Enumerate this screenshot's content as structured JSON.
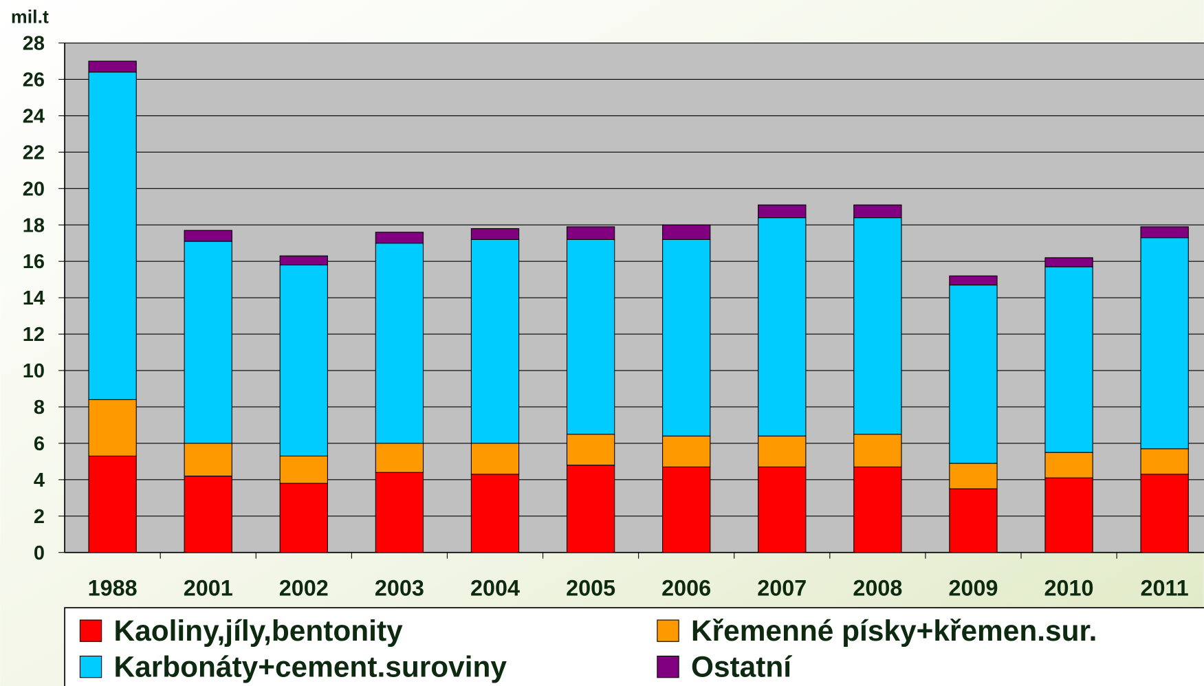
{
  "chart_data": {
    "type": "stacked_bar",
    "y_axis_label": "mil.t",
    "categories": [
      "1988",
      "2001",
      "2002",
      "2003",
      "2004",
      "2005",
      "2006",
      "2007",
      "2008",
      "2009",
      "2010",
      "2011"
    ],
    "series": [
      {
        "name": "Kaoliny,jíly,bentonity",
        "color": "#ff0000",
        "values": [
          5.3,
          4.2,
          3.8,
          4.4,
          4.3,
          4.8,
          4.7,
          4.7,
          4.7,
          3.5,
          4.1,
          4.3
        ]
      },
      {
        "name": "Křemenné písky+křemen.sur.",
        "color": "#ff9900",
        "values": [
          3.1,
          1.8,
          1.5,
          1.6,
          1.7,
          1.7,
          1.7,
          1.7,
          1.8,
          1.4,
          1.4,
          1.4
        ]
      },
      {
        "name": "Karbonáty+cement.suroviny",
        "color": "#00ccff",
        "values": [
          18.0,
          11.1,
          10.5,
          11.0,
          11.2,
          10.7,
          10.8,
          12.0,
          11.9,
          9.8,
          10.2,
          11.6
        ]
      },
      {
        "name": "Ostatní",
        "color": "#800080",
        "values": [
          0.6,
          0.6,
          0.5,
          0.6,
          0.6,
          0.7,
          0.8,
          0.7,
          0.7,
          0.5,
          0.5,
          0.6
        ]
      }
    ],
    "ylim": [
      0,
      28
    ],
    "yticks": [
      0,
      2,
      4,
      6,
      8,
      10,
      12,
      14,
      16,
      18,
      20,
      22,
      24,
      26,
      28
    ],
    "grid": true,
    "legend": "bottom"
  }
}
